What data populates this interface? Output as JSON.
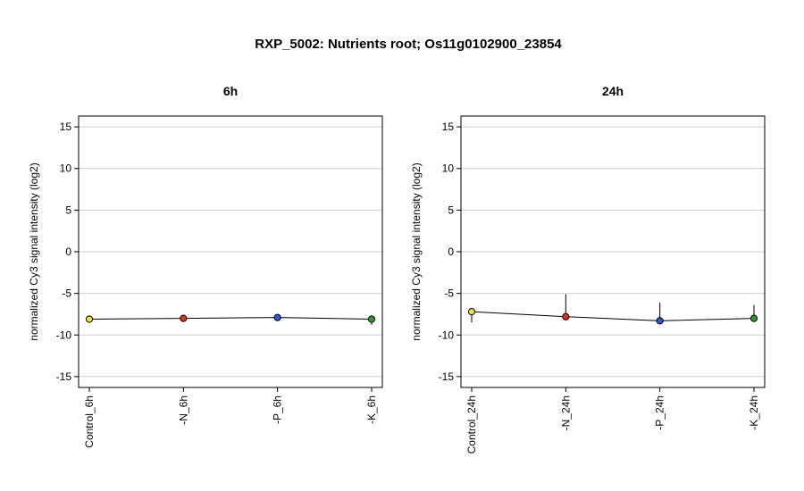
{
  "figure": {
    "title": "RXP_5002: Nutrients root; Os11g0102900_23854"
  },
  "chart_data": [
    {
      "type": "line",
      "title": "6h",
      "xlabel": "",
      "ylabel": "normalized Cy3 signal intensity (log2)",
      "ylim": [
        -16.3,
        16.3
      ],
      "yticks": [
        -15,
        -10,
        -5,
        0,
        5,
        10,
        15
      ],
      "grid": true,
      "categories": [
        "Control_6h",
        "-N_6h",
        "-P_6h",
        "-K_6h"
      ],
      "values": [
        -8.1,
        -8.0,
        -7.9,
        -8.1
      ],
      "error_low": [
        -8.1,
        -8.4,
        -7.9,
        -8.8
      ],
      "error_high": [
        -8.1,
        -8.0,
        -7.9,
        -8.1
      ],
      "point_colors": [
        "#f2e030",
        "#d13a1e",
        "#2a5bd7",
        "#2e9a2e"
      ]
    },
    {
      "type": "line",
      "title": "24h",
      "xlabel": "",
      "ylabel": "normalized Cy3 signal intensity (log2)",
      "ylim": [
        -16.3,
        16.3
      ],
      "yticks": [
        -15,
        -10,
        -5,
        0,
        5,
        10,
        15
      ],
      "grid": true,
      "categories": [
        "Control_24h",
        "-N_24h",
        "-P_24h",
        "-K_24h"
      ],
      "values": [
        -7.2,
        -7.8,
        -8.3,
        -8.0
      ],
      "error_low": [
        -8.5,
        -7.8,
        -8.3,
        -8.0
      ],
      "error_high": [
        -7.2,
        -5.1,
        -6.1,
        -6.4
      ],
      "point_colors": [
        "#f2e030",
        "#d13a1e",
        "#2a5bd7",
        "#2e9a2e"
      ]
    }
  ]
}
